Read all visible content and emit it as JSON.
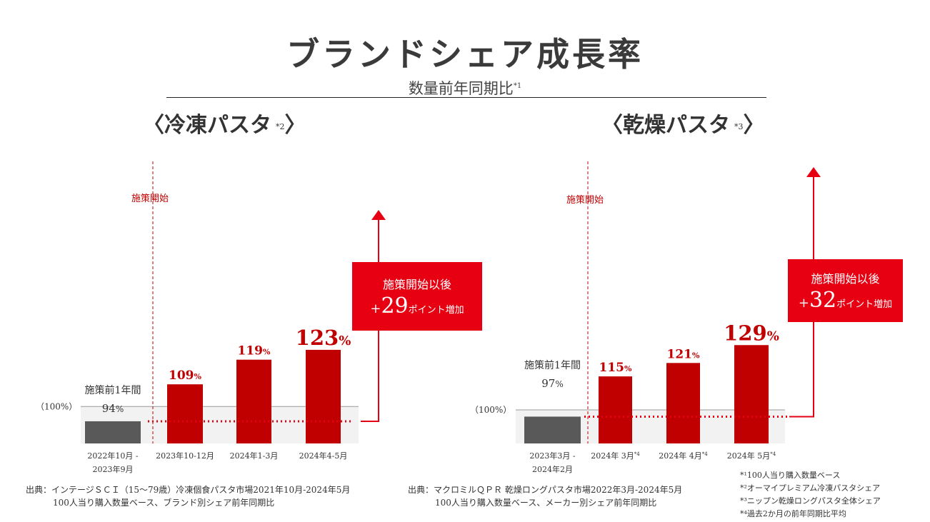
{
  "header": {
    "title": "ブランドシェア成長率",
    "subtitle": "数量前年同期比",
    "subtitle_note": "*1"
  },
  "colors": {
    "red": "#c00000",
    "bright_red": "#e60012",
    "gray_bar": "#595959",
    "band": "#f2f2f2"
  },
  "chart_data": [
    {
      "type": "bar",
      "title": "〈冷凍パスタ",
      "title_close": "〉",
      "title_note": "*2",
      "baseline_label": "（100%）",
      "baseline_value": 100,
      "ylim": [
        85,
        135
      ],
      "measure_start_label": "施策開始",
      "pre_label": "施策前1年間",
      "categories": [
        "2022年10月 -\n2023年9月",
        "2023年10-12月",
        "2024年1-3月",
        "2024年4-5月"
      ],
      "values": [
        94,
        109,
        119,
        123
      ],
      "labels": [
        "94",
        "109",
        "119",
        "123"
      ],
      "label_sizes": [
        15,
        17,
        17,
        29
      ],
      "callout": {
        "line1": "施策開始以後",
        "sign": "+",
        "number": "29",
        "unit": "ポイント増加"
      },
      "source_lines": [
        "出典：インテージＳＣＩ（15〜79歳）冷凍個食パスタ市場2021年10月-2024年5月",
        "100人当り購入数量ベース、ブランド別シェア前年同期比"
      ]
    },
    {
      "type": "bar",
      "title": "〈乾燥パスタ",
      "title_close": "〉",
      "title_note": "*3",
      "baseline_label": "（100%）",
      "baseline_value": 100,
      "ylim": [
        85,
        135
      ],
      "measure_start_label": "施策開始",
      "pre_label": "施策前1年間",
      "categories": [
        "2023年3月 -\n2024年2月",
        "2024年 3月*4",
        "2024年 4月*4",
        "2024年 5月*4"
      ],
      "values": [
        97,
        115,
        121,
        129
      ],
      "labels": [
        "97",
        "115",
        "121",
        "129"
      ],
      "label_sizes": [
        15,
        17,
        17,
        29
      ],
      "callout": {
        "line1": "施策開始以後",
        "sign": "+",
        "number": "32",
        "unit": "ポイント増加"
      },
      "source_lines": [
        "出典：マクロミルＱＰＲ 乾燥ロングパスタ市場2022年3月-2024年5月",
        "100人当り購入数量ベース、メーカー別シェア前年同期比"
      ]
    }
  ],
  "footnotes": [
    "*¹100人当り購入数量ベース",
    "*²オーマイプレミアム冷凍パスタシェア",
    "*³ニップン乾燥ロングパスタ全体シェア",
    "*⁴過去2か月の前年同期比平均"
  ]
}
